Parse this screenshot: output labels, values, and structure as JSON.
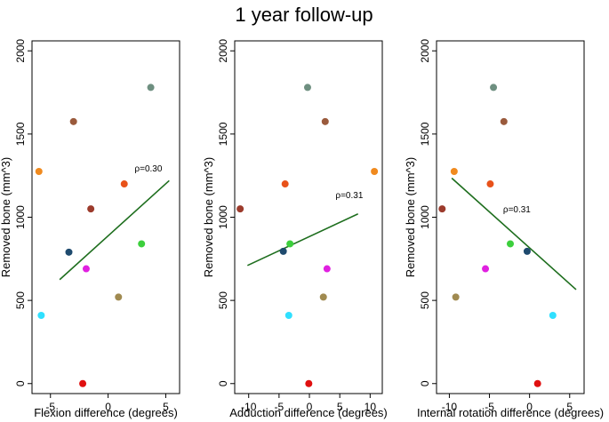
{
  "suptitle": "1 year follow-up",
  "chart_data": [
    {
      "type": "scatter",
      "xlabel": "Flexion difference (degrees)",
      "ylabel": "Removed bone (mm^3)",
      "xlim": [
        -6.6,
        6.2
      ],
      "ylim": [
        -60,
        2060
      ],
      "xticks": [
        -5,
        0,
        5
      ],
      "yticks": [
        0,
        500,
        1000,
        1500,
        2000
      ],
      "annotation": {
        "text": "ρ=0.30",
        "x": 2.3,
        "y": 1275
      },
      "fit_line": {
        "x": [
          -4.2,
          5.3
        ],
        "y": [
          625,
          1220
        ]
      },
      "points": [
        {
          "x": 3.7,
          "y": 1780,
          "color": "#6e8f80"
        },
        {
          "x": -3.0,
          "y": 1575,
          "color": "#9a5a3c"
        },
        {
          "x": -6.0,
          "y": 1275,
          "color": "#f08a1e"
        },
        {
          "x": 1.4,
          "y": 1200,
          "color": "#e8521a"
        },
        {
          "x": -1.5,
          "y": 1050,
          "color": "#9c3b2c"
        },
        {
          "x": 2.9,
          "y": 840,
          "color": "#3ccf3c"
        },
        {
          "x": -3.4,
          "y": 790,
          "color": "#1e4a6e"
        },
        {
          "x": -1.9,
          "y": 690,
          "color": "#e020e0"
        },
        {
          "x": 0.9,
          "y": 520,
          "color": "#a08a50"
        },
        {
          "x": -5.8,
          "y": 410,
          "color": "#30e0ff"
        },
        {
          "x": -2.2,
          "y": 0,
          "color": "#e01010"
        }
      ]
    },
    {
      "type": "scatter",
      "xlabel": "Adduction difference (degrees)",
      "ylabel": "Removed bone (mm^3)",
      "xlim": [
        -12.3,
        12.0
      ],
      "ylim": [
        -60,
        2060
      ],
      "xticks": [
        -10,
        -5,
        0,
        5,
        10
      ],
      "yticks": [
        0,
        500,
        1000,
        1500,
        2000
      ],
      "annotation": {
        "text": "ρ=0.31",
        "x": 4.3,
        "y": 1115
      },
      "fit_line": {
        "x": [
          -10.2,
          8.0
        ],
        "y": [
          710,
          1020
        ]
      },
      "points": [
        {
          "x": -0.3,
          "y": 1780,
          "color": "#6e8f80"
        },
        {
          "x": 2.6,
          "y": 1575,
          "color": "#9a5a3c"
        },
        {
          "x": 10.7,
          "y": 1275,
          "color": "#f08a1e"
        },
        {
          "x": -4.0,
          "y": 1200,
          "color": "#e8521a"
        },
        {
          "x": -11.4,
          "y": 1050,
          "color": "#9c3b2c"
        },
        {
          "x": -3.2,
          "y": 840,
          "color": "#3ccf3c"
        },
        {
          "x": -4.3,
          "y": 795,
          "color": "#1e4a6e"
        },
        {
          "x": 2.9,
          "y": 690,
          "color": "#e020e0"
        },
        {
          "x": 2.3,
          "y": 520,
          "color": "#a08a50"
        },
        {
          "x": -3.4,
          "y": 410,
          "color": "#30e0ff"
        },
        {
          "x": -0.1,
          "y": 0,
          "color": "#e01010"
        }
      ]
    },
    {
      "type": "scatter",
      "xlabel": "Internal rotation difference (degrees)",
      "ylabel": "Removed bone (mm^3)",
      "xlim": [
        -11.6,
        6.8
      ],
      "ylim": [
        -60,
        2060
      ],
      "xticks": [
        -10,
        -5,
        0,
        5
      ],
      "yticks": [
        0,
        500,
        1000,
        1500,
        2000
      ],
      "annotation": {
        "text": "ρ=0.31",
        "x": -3.3,
        "y": 1030
      },
      "fit_line": {
        "x": [
          -9.7,
          5.8
        ],
        "y": [
          1235,
          565
        ]
      },
      "points": [
        {
          "x": -4.5,
          "y": 1780,
          "color": "#6e8f80"
        },
        {
          "x": -3.2,
          "y": 1575,
          "color": "#9a5a3c"
        },
        {
          "x": -9.4,
          "y": 1275,
          "color": "#f08a1e"
        },
        {
          "x": -4.9,
          "y": 1200,
          "color": "#e8521a"
        },
        {
          "x": -10.9,
          "y": 1050,
          "color": "#9c3b2c"
        },
        {
          "x": -2.4,
          "y": 840,
          "color": "#3ccf3c"
        },
        {
          "x": -0.3,
          "y": 795,
          "color": "#1e4a6e"
        },
        {
          "x": -5.5,
          "y": 690,
          "color": "#e020e0"
        },
        {
          "x": -9.2,
          "y": 520,
          "color": "#a08a50"
        },
        {
          "x": 2.9,
          "y": 410,
          "color": "#30e0ff"
        },
        {
          "x": 1.0,
          "y": 0,
          "color": "#e01010"
        }
      ]
    }
  ]
}
